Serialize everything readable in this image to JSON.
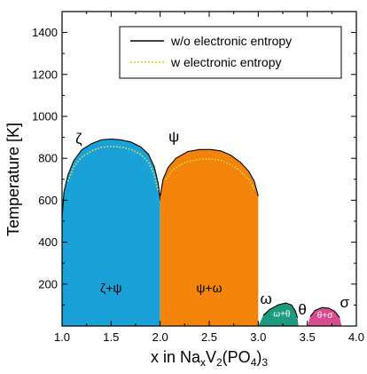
{
  "chart_data": {
    "type": "area",
    "xlabel": {
      "pre": "x in Na",
      "sub1": "x",
      "mid": "V",
      "sub2": "2",
      "mid2": "(PO",
      "sub3": "4",
      "post": ")",
      "sub4": "3"
    },
    "ylabel": "Temperature [K]",
    "xlim": [
      1.0,
      4.0
    ],
    "ylim": [
      0,
      1500
    ],
    "xticks": [
      "1.0",
      "1.5",
      "2.0",
      "2.5",
      "3.0",
      "3.5",
      "4.0"
    ],
    "yticks": [
      "200",
      "400",
      "600",
      "800",
      "1000",
      "1200",
      "1400"
    ],
    "legend": {
      "placement": "top-right",
      "entries": [
        {
          "label": "w/o electronic entropy",
          "style": "solid",
          "color": "#000000"
        },
        {
          "label": "w electronic entropy",
          "style": "dotted",
          "color": "#d4d000"
        }
      ]
    },
    "regions": [
      {
        "label": "ζ+ψ",
        "color": "#1aa2d8",
        "boundary": [
          [
            1.0,
            0
          ],
          [
            1.0,
            520
          ],
          [
            1.02,
            640
          ],
          [
            1.06,
            720
          ],
          [
            1.12,
            790
          ],
          [
            1.2,
            840
          ],
          [
            1.3,
            870
          ],
          [
            1.4,
            888
          ],
          [
            1.5,
            892
          ],
          [
            1.6,
            888
          ],
          [
            1.7,
            878
          ],
          [
            1.8,
            855
          ],
          [
            1.88,
            820
          ],
          [
            1.94,
            760
          ],
          [
            1.98,
            680
          ],
          [
            2.0,
            600
          ],
          [
            2.0,
            0
          ]
        ],
        "dotted_boundary": [
          [
            1.06,
            690
          ],
          [
            1.12,
            760
          ],
          [
            1.2,
            805
          ],
          [
            1.3,
            835
          ],
          [
            1.4,
            852
          ],
          [
            1.5,
            857
          ],
          [
            1.6,
            853
          ],
          [
            1.7,
            843
          ],
          [
            1.8,
            820
          ],
          [
            1.88,
            782
          ],
          [
            1.94,
            720
          ],
          [
            1.98,
            640
          ]
        ]
      },
      {
        "label": "ψ+ω",
        "color": "#f4830a",
        "boundary": [
          [
            2.0,
            0
          ],
          [
            2.0,
            620
          ],
          [
            2.03,
            700
          ],
          [
            2.08,
            755
          ],
          [
            2.16,
            800
          ],
          [
            2.28,
            832
          ],
          [
            2.4,
            842
          ],
          [
            2.52,
            842
          ],
          [
            2.62,
            835
          ],
          [
            2.72,
            815
          ],
          [
            2.82,
            780
          ],
          [
            2.9,
            740
          ],
          [
            2.96,
            690
          ],
          [
            3.0,
            620
          ],
          [
            3.0,
            0
          ]
        ],
        "dotted_boundary": [
          [
            2.06,
            700
          ],
          [
            2.14,
            750
          ],
          [
            2.26,
            782
          ],
          [
            2.4,
            795
          ],
          [
            2.52,
            797
          ],
          [
            2.62,
            790
          ],
          [
            2.72,
            770
          ],
          [
            2.82,
            738
          ],
          [
            2.9,
            700
          ],
          [
            2.96,
            650
          ]
        ]
      },
      {
        "label": "ω+θ",
        "color": "#1e9a7e",
        "boundary": [
          [
            3.0,
            0
          ],
          [
            3.05,
            50
          ],
          [
            3.12,
            80
          ],
          [
            3.2,
            100
          ],
          [
            3.28,
            110
          ],
          [
            3.34,
            100
          ],
          [
            3.38,
            70
          ],
          [
            3.4,
            40
          ],
          [
            3.41,
            0
          ]
        ],
        "dotted_boundary": []
      },
      {
        "label": "θ+σ",
        "color": "#d94c8e",
        "boundary": [
          [
            3.5,
            0
          ],
          [
            3.53,
            45
          ],
          [
            3.58,
            75
          ],
          [
            3.65,
            88
          ],
          [
            3.72,
            85
          ],
          [
            3.78,
            70
          ],
          [
            3.83,
            40
          ],
          [
            3.85,
            0
          ]
        ],
        "dotted_boundary": []
      }
    ],
    "phase_labels": [
      {
        "text": "ζ",
        "x": 1.17,
        "y": 870
      },
      {
        "text": "ψ",
        "x": 2.14,
        "y": 880
      },
      {
        "text": "ω",
        "x": 3.08,
        "y": 105
      },
      {
        "text": "θ",
        "x": 3.45,
        "y": 55
      },
      {
        "text": "σ",
        "x": 3.88,
        "y": 90
      }
    ],
    "region_labels": [
      {
        "text": "ζ+ψ",
        "x": 1.5,
        "y": 160,
        "small": false
      },
      {
        "text": "ψ+ω",
        "x": 2.5,
        "y": 160,
        "small": false
      },
      {
        "text": "ω+θ",
        "x": 3.24,
        "y": 45,
        "small": true
      },
      {
        "text": "θ+σ",
        "x": 3.68,
        "y": 38,
        "small": true
      }
    ]
  }
}
